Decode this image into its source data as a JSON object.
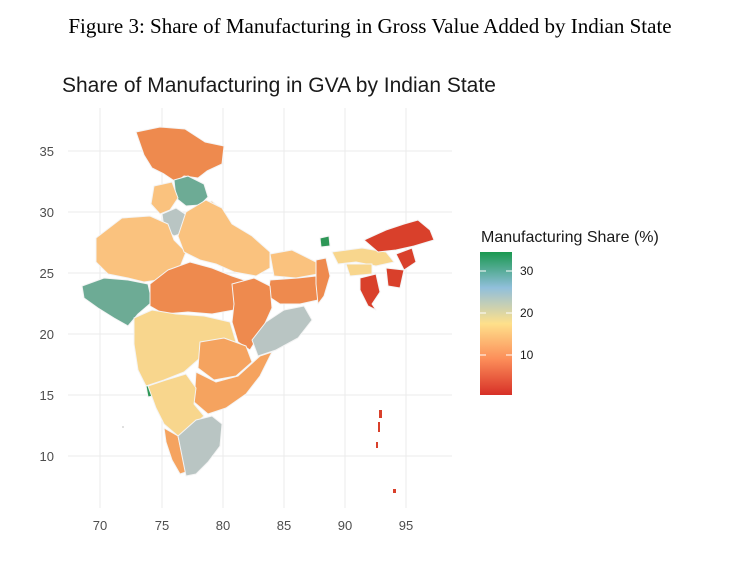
{
  "figure_caption": "Figure 3: Share of Manufacturing in Gross Value Added by Indian State",
  "map": {
    "title": "Share of Manufacturing in GVA by Indian State",
    "x_ticks": [
      "70",
      "75",
      "80",
      "85",
      "90",
      "95"
    ],
    "y_ticks": [
      "35",
      "30",
      "25",
      "20",
      "15",
      "10"
    ],
    "legend": {
      "title": "Manufacturing Share (%)",
      "ticks": [
        "30",
        "20",
        "10"
      ],
      "colors": [
        "#d73027",
        "#fc8d59",
        "#fee08b",
        "#91bfdb",
        "#1a9850"
      ]
    }
  },
  "colors": {
    "red": "#d9402b",
    "orange": "#ee8a4e",
    "light_orange": "#f5a35f",
    "peach": "#fac27e",
    "yellow": "#f8d68d",
    "grey_blue": "#b9c5c3",
    "teal": "#6dab95",
    "green": "#2e9757"
  }
}
